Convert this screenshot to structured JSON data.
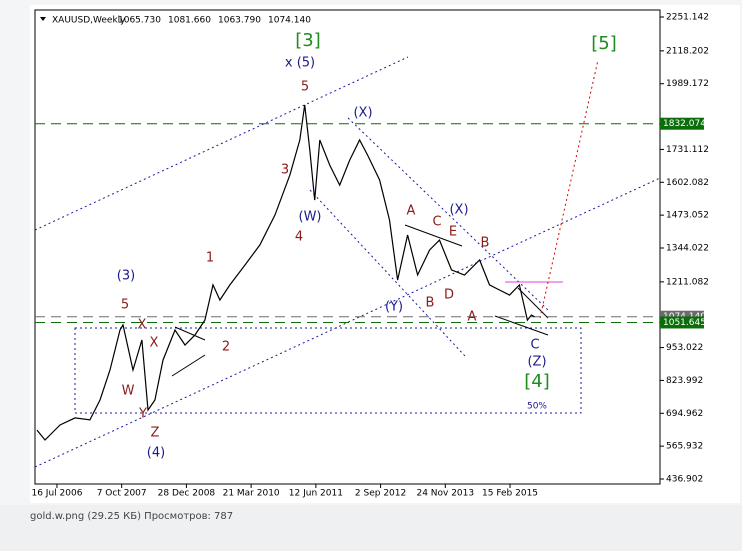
{
  "chart_data": {
    "type": "line",
    "title": "XAUUSD,Weekly",
    "ohlc": [
      "1065.730",
      "1081.660",
      "1063.790",
      "1074.140"
    ],
    "x": [
      "2006-02-28",
      "2006-04-24",
      "2006-08-06",
      "2006-11-18",
      "2007-03-01",
      "2007-05-10",
      "2007-07-18",
      "2007-09-25",
      "2007-10-16",
      "2007-12-24",
      "2008-02-24",
      "2008-04-06",
      "2008-05-24",
      "2008-07-19",
      "2008-10-10",
      "2008-12-18",
      "2009-02-25",
      "2009-05-05",
      "2009-06-30",
      "2009-08-17",
      "2009-10-25",
      "2010-02-06",
      "2010-05-21",
      "2010-09-02",
      "2010-12-14",
      "2011-02-21",
      "2011-03-27",
      "2011-05-01",
      "2011-06-04",
      "2011-07-09",
      "2011-09-16",
      "2011-11-24",
      "2012-02-01",
      "2012-04-10",
      "2012-06-04",
      "2012-08-26",
      "2012-11-03",
      "2012-12-29",
      "2013-03-08",
      "2013-05-16",
      "2013-08-07",
      "2013-10-15",
      "2014-01-06",
      "2014-04-06",
      "2014-07-19",
      "2014-09-26",
      "2014-12-04",
      "2015-02-11",
      "2015-04-21",
      "2015-06-15",
      "2015-07-13",
      "2015-08-03"
    ],
    "series": [
      {
        "color": "#000000",
        "values": [
          629,
          590,
          649,
          677,
          669,
          747,
          865,
          1022,
          1042,
          865,
          983,
          708,
          747,
          904,
          1022,
          963,
          1002,
          1061,
          1199,
          1140,
          1199,
          1277,
          1356,
          1474,
          1631,
          1768,
          1906,
          1729,
          1532,
          1768,
          1670,
          1591,
          1689,
          1768,
          1709,
          1611,
          1454,
          1218,
          1395,
          1238,
          1336,
          1375,
          1258,
          1238,
          1297,
          1199,
          1179,
          1159,
          1199,
          1061,
          1081,
          1074
        ]
      }
    ],
    "xlim": [
      "2006-02-14",
      "2017-12-19"
    ],
    "xticks": [
      {
        "value": "2006-07-16",
        "label": "16 Jul 2006"
      },
      {
        "value": "2007-10-07",
        "label": "7 Oct 2007"
      },
      {
        "value": "2008-12-28",
        "label": "28 Dec 2008"
      },
      {
        "value": "2010-03-21",
        "label": "21 Mar 2010"
      },
      {
        "value": "2011-06-12",
        "label": "12 Jun 2011"
      },
      {
        "value": "2012-09-02",
        "label": "2 Sep 2012"
      },
      {
        "value": "2013-11-24",
        "label": "24 Nov 2013"
      },
      {
        "value": "2015-02-15",
        "label": "15 Feb 2015"
      }
    ],
    "ylim": [
      417.3,
      2278.6
    ],
    "yticks": [
      2251.142,
      2118.202,
      1989.172,
      1731.112,
      1602.082,
      1473.052,
      1344.022,
      1211.082,
      953.022,
      823.992,
      694.962,
      565.932,
      436.902
    ],
    "price_levels": [
      {
        "value": 1832.074,
        "color": "#0a6e0a"
      },
      {
        "value": 1074.14,
        "label": "1074.140",
        "color": "#6b6b6b"
      },
      {
        "value": 1051.645,
        "color": "#0a6e0a"
      }
    ],
    "annotations": [
      {
        "text": "[3]",
        "color": "#1e8c1e"
      },
      {
        "text": "x (5)",
        "color": "#1a1a8c"
      },
      {
        "text": "5",
        "color": "#8b1a1a"
      },
      {
        "text": "(X)",
        "color": "#1a1a8c"
      },
      {
        "text": "3",
        "color": "#8b1a1a"
      },
      {
        "text": "(W)",
        "color": "#1a1a8c"
      },
      {
        "text": "4",
        "color": "#8b1a1a"
      },
      {
        "text": "A",
        "color": "#8b1a1a"
      },
      {
        "text": "C",
        "color": "#8b1a1a"
      },
      {
        "text": "(X)",
        "color": "#1a1a8c"
      },
      {
        "text": "E",
        "color": "#8b1a1a"
      },
      {
        "text": "B",
        "color": "#8b1a1a"
      },
      {
        "text": "D",
        "color": "#8b1a1a"
      },
      {
        "text": "B",
        "color": "#8b1a1a"
      },
      {
        "text": "(Y)",
        "color": "#1a1a8c"
      },
      {
        "text": "A",
        "color": "#8b1a1a"
      },
      {
        "text": "1",
        "color": "#8b1a1a"
      },
      {
        "text": "2",
        "color": "#8b1a1a"
      },
      {
        "text": "(3)",
        "color": "#1a1a8c"
      },
      {
        "text": "5",
        "color": "#8b1a1a"
      },
      {
        "text": "X",
        "color": "#8b1a1a"
      },
      {
        "text": "X",
        "color": "#8b1a1a"
      },
      {
        "text": "W",
        "color": "#8b1a1a"
      },
      {
        "text": "Y",
        "color": "#8b1a1a"
      },
      {
        "text": "Z",
        "color": "#8b1a1a"
      },
      {
        "text": "(4)",
        "color": "#1a1a8c"
      },
      {
        "text": "C",
        "color": "#1a1a8c"
      },
      {
        "text": "(Z)",
        "color": "#1a1a8c"
      },
      {
        "text": "[4]",
        "color": "#1e8c1e"
      },
      {
        "text": "50%",
        "color": "#1a1a8c"
      },
      {
        "text": "[5]",
        "color": "#1e8c1e"
      }
    ]
  },
  "footer": "gold.w.png (29.25 КБ) Просмотров: 787"
}
